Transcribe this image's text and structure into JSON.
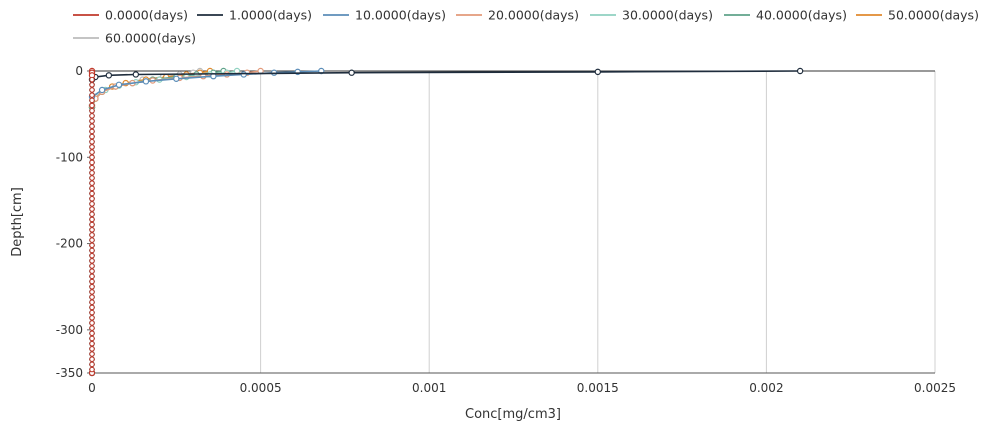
{
  "chart_data": {
    "type": "line",
    "xlabel": "Conc[mg/cm3]",
    "ylabel": "Depth[cm]",
    "xlim": [
      0,
      0.0025
    ],
    "ylim": [
      -350,
      0
    ],
    "x_ticks": [
      {
        "value": 0,
        "label": "0"
      },
      {
        "value": 0.0005,
        "label": "0.0005"
      },
      {
        "value": 0.001,
        "label": "0.001"
      },
      {
        "value": 0.0015,
        "label": "0.0015"
      },
      {
        "value": 0.002,
        "label": "0.002"
      },
      {
        "value": 0.0025,
        "label": "0.0025"
      }
    ],
    "y_ticks": [
      {
        "value": 0,
        "label": "0"
      },
      {
        "value": -100,
        "label": "-100"
      },
      {
        "value": -200,
        "label": "-200"
      },
      {
        "value": -300,
        "label": "-300"
      },
      {
        "value": -350,
        "label": "-350"
      }
    ],
    "grid": "vertical",
    "legend_position": "top",
    "series": [
      {
        "name": "0.0000(days)",
        "color": "#c0392b",
        "points": [
          [
            0,
            0
          ],
          [
            0,
            -2
          ],
          [
            0,
            -5
          ],
          [
            0,
            -350
          ]
        ]
      },
      {
        "name": "1.0000(days)",
        "color": "#1f2d3d",
        "points": [
          [
            0.0021,
            0
          ],
          [
            0.0015,
            -1
          ],
          [
            0.00077,
            -2
          ],
          [
            0.00013,
            -4
          ],
          [
            5e-05,
            -5
          ],
          [
            1e-05,
            -7
          ],
          [
            0,
            -10
          ],
          [
            0,
            -350
          ]
        ]
      },
      {
        "name": "10.0000(days)",
        "color": "#5b8db8",
        "points": [
          [
            0.00068,
            0
          ],
          [
            0.00061,
            -1
          ],
          [
            0.00054,
            -2
          ],
          [
            0.00045,
            -4
          ],
          [
            0.00036,
            -6
          ],
          [
            0.00025,
            -9
          ],
          [
            0.00016,
            -12
          ],
          [
            8e-05,
            -16
          ],
          [
            3e-05,
            -22
          ],
          [
            0,
            -30
          ],
          [
            0,
            -350
          ]
        ]
      },
      {
        "name": "20.0000(days)",
        "color": "#e39a7a",
        "points": [
          [
            0.0005,
            0
          ],
          [
            0.00046,
            -2
          ],
          [
            0.0004,
            -4
          ],
          [
            0.00033,
            -6
          ],
          [
            0.00026,
            -8
          ],
          [
            0.00018,
            -11
          ],
          [
            0.00012,
            -14
          ],
          [
            7e-05,
            -18
          ],
          [
            3e-05,
            -24
          ],
          [
            1e-05,
            -32
          ],
          [
            0,
            -40
          ],
          [
            0,
            -350
          ]
        ]
      },
      {
        "name": "30.0000(days)",
        "color": "#8fd1c0",
        "points": [
          [
            0.00043,
            0
          ],
          [
            0.0004,
            -2
          ],
          [
            0.00035,
            -4
          ],
          [
            0.00028,
            -7
          ],
          [
            0.0002,
            -10
          ],
          [
            0.00013,
            -13
          ],
          [
            8e-05,
            -17
          ],
          [
            4e-05,
            -22
          ],
          [
            1e-05,
            -30
          ],
          [
            0,
            -40
          ],
          [
            0,
            -350
          ]
        ]
      },
      {
        "name": "40.0000(days)",
        "color": "#5fa38a",
        "points": [
          [
            0.00039,
            0
          ],
          [
            0.00036,
            -2
          ],
          [
            0.00031,
            -4
          ],
          [
            0.00025,
            -7
          ],
          [
            0.00018,
            -10
          ],
          [
            0.00012,
            -14
          ],
          [
            7e-05,
            -18
          ],
          [
            3e-05,
            -24
          ],
          [
            1e-05,
            -32
          ],
          [
            0,
            -42
          ],
          [
            0,
            -350
          ]
        ]
      },
      {
        "name": "50.0000(days)",
        "color": "#e08a2e",
        "points": [
          [
            0.00035,
            0
          ],
          [
            0.00032,
            -2
          ],
          [
            0.00028,
            -4
          ],
          [
            0.00022,
            -7
          ],
          [
            0.00016,
            -10
          ],
          [
            0.0001,
            -14
          ],
          [
            6e-05,
            -18
          ],
          [
            3e-05,
            -24
          ],
          [
            1e-05,
            -32
          ],
          [
            0,
            -42
          ],
          [
            0,
            -350
          ]
        ]
      },
      {
        "name": "60.0000(days)",
        "color": "#bbbbbb",
        "points": [
          [
            0.00032,
            0
          ],
          [
            0.0003,
            -2
          ],
          [
            0.00026,
            -4
          ],
          [
            0.00021,
            -7
          ],
          [
            0.00015,
            -10
          ],
          [
            0.0001,
            -14
          ],
          [
            6e-05,
            -18
          ],
          [
            3e-05,
            -24
          ],
          [
            1e-05,
            -32
          ],
          [
            0,
            -42
          ],
          [
            0,
            -350
          ]
        ]
      }
    ]
  }
}
